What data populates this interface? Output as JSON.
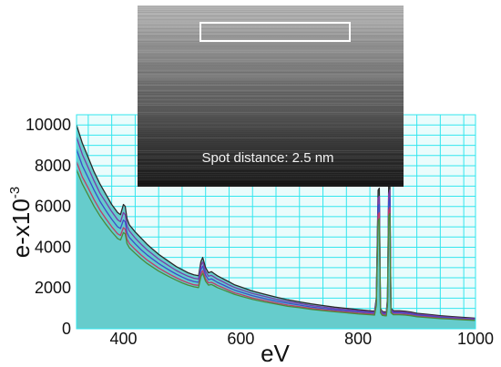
{
  "chart_data": {
    "type": "area",
    "title": "",
    "xlabel": "eV",
    "ylabel_main": "e-x10",
    "ylabel_exponent": "-3",
    "xlim": [
      320,
      1000
    ],
    "ylim": [
      0,
      10500
    ],
    "xticks": [
      "400",
      "600",
      "800",
      "1000"
    ],
    "yticks": [
      "0",
      "2000",
      "4000",
      "6000",
      "8000",
      "10000"
    ],
    "grid": true,
    "x": [
      320,
      330,
      340,
      350,
      360,
      370,
      380,
      390,
      395,
      400,
      403,
      406,
      410,
      420,
      430,
      440,
      450,
      460,
      470,
      480,
      490,
      500,
      510,
      520,
      528,
      532,
      535,
      540,
      545,
      550,
      555,
      560,
      570,
      580,
      590,
      600,
      620,
      640,
      660,
      680,
      700,
      720,
      740,
      760,
      780,
      800,
      820,
      828,
      831,
      834,
      836,
      838,
      841,
      845,
      848,
      850,
      852,
      854,
      856,
      860,
      870,
      880,
      890,
      900,
      920,
      940,
      960,
      980,
      1000
    ],
    "series": [
      {
        "values": [
          10000,
          9100,
          8400,
          7700,
          7100,
          6600,
          6100,
          5700,
          5600,
          6100,
          6000,
          5400,
          5100,
          4750,
          4450,
          4150,
          3900,
          3650,
          3450,
          3250,
          3050,
          2900,
          2750,
          2650,
          2600,
          3300,
          3500,
          3000,
          2750,
          2800,
          2700,
          2600,
          2450,
          2300,
          2150,
          2050,
          1850,
          1700,
          1550,
          1420,
          1320,
          1220,
          1140,
          1060,
          1000,
          940,
          880,
          860,
          1500,
          6800,
          6900,
          1000,
          850,
          830,
          820,
          1500,
          7000,
          7200,
          1000,
          880,
          880,
          860,
          820,
          760,
          700,
          640,
          600,
          560,
          520
        ]
      },
      {
        "values": [
          9400,
          8550,
          7900,
          7250,
          6650,
          6200,
          5750,
          5350,
          5250,
          5700,
          5600,
          5050,
          4800,
          4450,
          4150,
          3880,
          3650,
          3420,
          3230,
          3040,
          2860,
          2710,
          2580,
          2480,
          2440,
          3100,
          3280,
          2810,
          2580,
          2620,
          2530,
          2440,
          2300,
          2150,
          2020,
          1920,
          1730,
          1590,
          1450,
          1330,
          1240,
          1140,
          1070,
          990,
          940,
          880,
          830,
          810,
          1400,
          6400,
          6500,
          940,
          800,
          780,
          770,
          1400,
          6600,
          6800,
          940,
          830,
          830,
          810,
          770,
          710,
          660,
          600,
          560,
          520,
          490
        ]
      },
      {
        "values": [
          8800,
          8000,
          7400,
          6800,
          6250,
          5800,
          5380,
          5000,
          4920,
          5330,
          5250,
          4720,
          4480,
          4170,
          3880,
          3630,
          3410,
          3200,
          3020,
          2840,
          2680,
          2540,
          2410,
          2320,
          2280,
          2900,
          3070,
          2630,
          2410,
          2450,
          2370,
          2280,
          2150,
          2010,
          1890,
          1800,
          1620,
          1490,
          1360,
          1250,
          1160,
          1070,
          1000,
          930,
          880,
          830,
          780,
          760,
          1300,
          6000,
          6100,
          880,
          750,
          730,
          720,
          1300,
          6200,
          6400,
          880,
          780,
          780,
          760,
          720,
          670,
          620,
          560,
          530,
          490,
          460
        ]
      },
      {
        "values": [
          8200,
          7450,
          6900,
          6330,
          5820,
          5400,
          5010,
          4660,
          4580,
          4960,
          4890,
          4400,
          4180,
          3890,
          3620,
          3380,
          3180,
          2980,
          2810,
          2650,
          2500,
          2370,
          2250,
          2160,
          2130,
          2700,
          2860,
          2450,
          2250,
          2280,
          2210,
          2130,
          2010,
          1880,
          1760,
          1680,
          1510,
          1390,
          1270,
          1160,
          1080,
          1000,
          930,
          870,
          820,
          770,
          730,
          710,
          1200,
          5600,
          5700,
          820,
          700,
          680,
          670,
          1200,
          5800,
          5950,
          820,
          720,
          720,
          710,
          670,
          620,
          570,
          520,
          490,
          460,
          430
        ]
      },
      {
        "values": [
          7800,
          7100,
          6550,
          6000,
          5530,
          5130,
          4760,
          4430,
          4350,
          4720,
          4650,
          4180,
          3970,
          3700,
          3440,
          3210,
          3020,
          2830,
          2670,
          2520,
          2380,
          2250,
          2140,
          2060,
          2020,
          2560,
          2720,
          2330,
          2140,
          2170,
          2100,
          2020,
          1910,
          1790,
          1680,
          1600,
          1440,
          1320,
          1210,
          1100,
          1030,
          950,
          890,
          830,
          780,
          730,
          690,
          670,
          1140,
          5300,
          5400,
          780,
          660,
          640,
          630,
          1140,
          5500,
          5650,
          780,
          690,
          690,
          670,
          640,
          590,
          540,
          500,
          470,
          440,
          410
        ]
      }
    ]
  },
  "inset": {
    "caption": "Spot distance: 2.5 nm"
  },
  "colors": {
    "plot_background": "#eafcfc",
    "grid": "#33e6ee",
    "fill": "#66cccc",
    "series": [
      "#2a2a2a",
      "#7a3aa8",
      "#3d4cc8",
      "#c03a6a",
      "#4a8a3a"
    ],
    "inset_bright": "#b8b8b8",
    "inset_dark": "#141414",
    "roi_box": "#ffffff"
  }
}
